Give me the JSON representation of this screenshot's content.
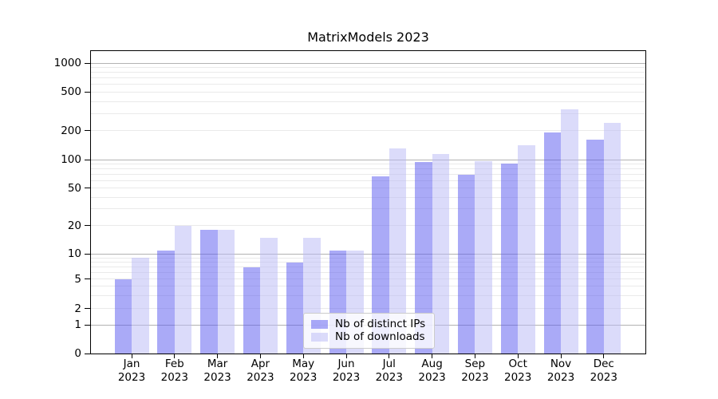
{
  "chart_data": {
    "type": "bar",
    "title": "MatrixModels 2023",
    "categories": [
      "Jan",
      "Feb",
      "Mar",
      "Apr",
      "May",
      "Jun",
      "Jul",
      "Aug",
      "Sep",
      "Oct",
      "Nov",
      "Dec"
    ],
    "x_year_label": "2023",
    "series": [
      {
        "name": "Nb of distinct IPs",
        "color": "rgba(85,85,240,0.5)",
        "values": [
          5,
          11,
          18,
          7,
          8,
          11,
          67,
          94,
          69,
          91,
          192,
          160
        ]
      },
      {
        "name": "Nb of downloads",
        "color": "rgba(183,183,245,0.5)",
        "values": [
          9,
          20,
          18,
          15,
          15,
          11,
          131,
          115,
          97,
          140,
          330,
          240
        ]
      }
    ],
    "xlabel": "",
    "ylabel": "",
    "yscale": "symlog",
    "yticks": [
      0,
      1,
      2,
      5,
      10,
      20,
      50,
      100,
      200,
      500,
      1000
    ],
    "ylim": [
      0,
      1400
    ],
    "grid": true,
    "legend_position": "lower center"
  },
  "colors": {
    "background": "#ffffff",
    "axis": "#000000",
    "grid_major": "#b2b2b2",
    "grid_minor": "#eaeaea",
    "legend_border": "#cccccc",
    "legend_background": "rgba(255,255,255,0.8)"
  }
}
